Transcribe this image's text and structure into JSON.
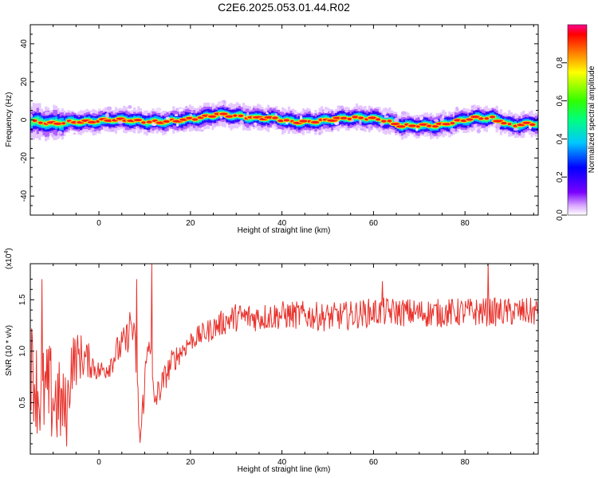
{
  "page_title": "C2E6.2025.053.01.44.R02",
  "chart_data": [
    {
      "type": "heatmap",
      "xlabel": "Height of straight line (km)",
      "ylabel": "Frequency (Hz)",
      "xlim": [
        -15,
        96
      ],
      "ylim": [
        -50,
        50
      ],
      "xticks": [
        0,
        20,
        40,
        60,
        80
      ],
      "yticks": [
        -40,
        -20,
        0,
        20,
        40
      ],
      "colorbar": {
        "label": "Normalized spectral amplitude",
        "range": [
          0.0,
          1.0
        ],
        "ticks": [
          "0.0",
          "0.2",
          "0.4",
          "0.6",
          "0.8"
        ],
        "colormap": "rainbow (white-magenta-blue-cyan-green-yellow-red)"
      },
      "ridge_frequency": {
        "x": [
          -14,
          -10,
          -6,
          -2,
          2,
          6,
          10,
          14,
          18,
          22,
          26,
          30,
          34,
          38,
          42,
          46,
          50,
          54,
          58,
          62,
          66,
          70,
          74,
          78,
          82,
          86,
          90,
          94,
          96
        ],
        "y": [
          -1,
          -2,
          -1,
          -1,
          0,
          0,
          -1,
          -1,
          0,
          1,
          3,
          2,
          1,
          1,
          -1,
          -1,
          0,
          1,
          1,
          0,
          -3,
          -3,
          -3,
          -1,
          1,
          1,
          -3,
          -2,
          -2
        ]
      },
      "grid": false,
      "legend": "colorbar right"
    },
    {
      "type": "line",
      "xlabel": "Height of straight line (km)",
      "ylabel": "SNR (10 * v/v)",
      "y_multiplier": "(x10",
      "y_multiplier_exp": "4",
      "y_multiplier_close": ")",
      "xlim": [
        -15,
        96
      ],
      "ylim": [
        0,
        1.85
      ],
      "xticks": [
        0,
        20,
        40,
        60,
        80
      ],
      "yticks": [
        "0.5",
        "1.0",
        "1.5"
      ],
      "color": "#e8322c",
      "envelope": {
        "x": [
          -15,
          -13,
          -11,
          -9,
          -8,
          -7,
          -6,
          -4,
          -2,
          0,
          2,
          4,
          6,
          7,
          8,
          9,
          10,
          11,
          12,
          14,
          16,
          18,
          20,
          22,
          24,
          26,
          28,
          30,
          35,
          40,
          45,
          50,
          55,
          60,
          65,
          70,
          75,
          80,
          85,
          90,
          96
        ],
        "y": [
          0.9,
          0.55,
          0.6,
          0.5,
          0.45,
          0.4,
          0.9,
          0.95,
          0.9,
          0.8,
          0.85,
          1.0,
          1.1,
          1.3,
          1.0,
          0.1,
          0.7,
          1.2,
          0.5,
          0.7,
          0.9,
          1.0,
          1.1,
          1.15,
          1.2,
          1.25,
          1.3,
          1.33,
          1.33,
          1.35,
          1.35,
          1.33,
          1.35,
          1.38,
          1.38,
          1.37,
          1.37,
          1.38,
          1.38,
          1.38,
          1.38
        ]
      },
      "noise_amplitude": {
        "x": [
          -15,
          -10,
          -6,
          0,
          8,
          12,
          20,
          30,
          96
        ],
        "a": [
          0.45,
          0.5,
          0.3,
          0.1,
          0.2,
          0.15,
          0.1,
          0.14,
          0.14
        ]
      },
      "spikes": [
        {
          "x": -12.5,
          "y": 1.7
        },
        {
          "x": 8.2,
          "y": 1.7
        },
        {
          "x": 11.5,
          "y": 1.85
        },
        {
          "x": 85,
          "y": 1.85
        },
        {
          "x": 62,
          "y": 1.68
        }
      ],
      "grid": false
    }
  ]
}
